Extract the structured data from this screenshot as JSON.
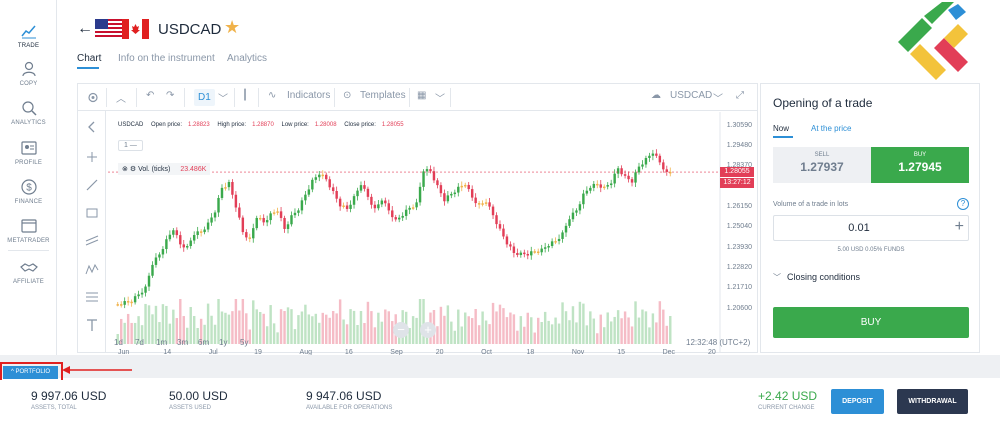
{
  "sidebar": {
    "items": [
      {
        "label": "TRADE",
        "icon": "trade-chart-icon"
      },
      {
        "label": "COPY",
        "icon": "copy-users-icon"
      },
      {
        "label": "ANALYTICS",
        "icon": "analytics-icon"
      },
      {
        "label": "PROFILE",
        "icon": "profile-card-icon"
      },
      {
        "label": "FINANCE",
        "icon": "dollar-coin-icon"
      },
      {
        "label": "METATRADER",
        "icon": "metatrader-window-icon"
      },
      {
        "label": "AFFILIATE",
        "icon": "handshake-icon"
      }
    ]
  },
  "header": {
    "title": "USDCAD",
    "tabs": [
      "Chart",
      "Info on the instrument",
      "Analytics"
    ]
  },
  "toolbar": {
    "timeframe": "D1",
    "indicators": "Indicators",
    "templates": "Templates",
    "symbol": "USDCAD"
  },
  "chart_info": {
    "symbol": "USDCAD",
    "open_label": "Open price:",
    "open": "1.28823",
    "high_label": "High price:",
    "high": "1.28870",
    "low_label": "Low price:",
    "low": "1.28008",
    "close_label": "Close price:",
    "close": "1.28055",
    "series_badge": "1 —",
    "volume_label": "Vol. (ticks)",
    "volume_value": "23.486K",
    "price_tag": "1.28055",
    "countdown_tag": "13:27:12",
    "ranges": [
      "1d",
      "7d",
      "1m",
      "3m",
      "6m",
      "1y",
      "5y"
    ],
    "time_readout": "12:32:48 (UTC+2)"
  },
  "chart_data": {
    "type": "candlestick",
    "symbol": "USDCAD",
    "timeframe": "D1",
    "y_ticks": [
      "1.30590",
      "1.29480",
      "1.28370",
      "1.27260",
      "1.26150",
      "1.25040",
      "1.23930",
      "1.22820",
      "1.21710",
      "1.20600"
    ],
    "x_ticks": [
      "Jun",
      "14",
      "Jul",
      "19",
      "Aug",
      "16",
      "Sep",
      "20",
      "Oct",
      "18",
      "Nov",
      "15",
      "Dec",
      "20"
    ],
    "ylim": [
      1.2015,
      1.31
    ],
    "last_price": 1.28055,
    "close_path": [
      1.2085,
      1.2102,
      1.2095,
      1.2138,
      1.2181,
      1.2299,
      1.2356,
      1.2439,
      1.2488,
      1.2411,
      1.2402,
      1.2462,
      1.2478,
      1.253,
      1.2585,
      1.2719,
      1.2751,
      1.2612,
      1.2478,
      1.2444,
      1.2555,
      1.2531,
      1.258,
      1.2591,
      1.2495,
      1.257,
      1.2596,
      1.2682,
      1.2763,
      1.2791,
      1.2766,
      1.2702,
      1.2618,
      1.2604,
      1.2674,
      1.2734,
      1.267,
      1.2608,
      1.265,
      1.2596,
      1.2547,
      1.2566,
      1.261,
      1.264,
      1.2809,
      1.281,
      1.2734,
      1.2646,
      1.2686,
      1.2725,
      1.2735,
      1.2666,
      1.263,
      1.264,
      1.257,
      1.2497,
      1.2411,
      1.2364,
      1.2366,
      1.2351,
      1.2372,
      1.2388,
      1.2402,
      1.2429,
      1.2476,
      1.2548,
      1.2596,
      1.2688,
      1.2719,
      1.2738,
      1.2726,
      1.2743,
      1.2826,
      1.2785,
      1.2748,
      1.2835,
      1.2882,
      1.2906,
      1.2858,
      1.2806
    ],
    "volume_present": true
  },
  "trade_panel": {
    "title": "Opening of a trade",
    "tab_now": "Now",
    "tab_at_price": "At the price",
    "sell_label": "SELL",
    "sell_price": "1.27937",
    "buy_label": "BUY",
    "buy_price": "1.27945",
    "volume_label": "Volume of a trade in lots",
    "lots": "0.01",
    "funds_line": "5.00 USD  0.05% FUNDS",
    "closing_conditions": "Closing conditions",
    "buy_button": "BUY"
  },
  "portfolio_label": "PORTFOLIO",
  "footer": {
    "assets_total": "9 997.06 USD",
    "assets_total_label": "ASSETS, TOTAL",
    "assets_used": "50.00 USD",
    "assets_used_label": "ASSETS USED",
    "available": "9 947.06 USD",
    "available_label": "AVAILABLE FOR OPERATIONS",
    "current_change": "+2.42 USD",
    "current_change_label": "CURRENT CHANGE",
    "deposit": "DEPOSIT",
    "withdrawal": "WITHDRAWAL"
  },
  "colors": {
    "accent": "#2d8fd6",
    "bull": "#3aa94c",
    "bear": "#e23e57",
    "doji": "#f0b24a",
    "dark_button": "#2c3850"
  }
}
